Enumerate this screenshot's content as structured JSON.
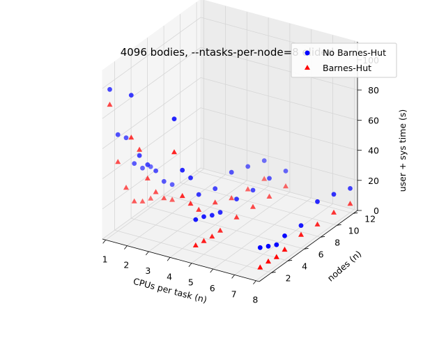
{
  "chart_data": {
    "type": "scatter",
    "title": "4096 bodies, --ntasks-per-node=8 elided",
    "xlabel": "CPUs per task (n)",
    "ylabel": "nodes (n)",
    "zlabel": "user + sys time (s)",
    "xlim": [
      0.85,
      8.15
    ],
    "ylim": [
      0.5,
      12.5
    ],
    "zlim": [
      0,
      112
    ],
    "x_ticks": [
      "1",
      "2",
      "3",
      "4",
      "5",
      "6",
      "7",
      "8"
    ],
    "y_ticks": [
      "2",
      "4",
      "6",
      "8",
      "10",
      "12"
    ],
    "z_ticks": [
      "0",
      "20",
      "40",
      "60",
      "80",
      "100"
    ],
    "grid": true,
    "legend_position": "top-right",
    "colors": {
      "no_barnes_hut": "#0000ff",
      "barnes_hut": "#ff0000"
    },
    "series": [
      {
        "name": "No Barnes-Hut",
        "marker": "circle",
        "points": [
          [
            1,
            1,
            98
          ],
          [
            1,
            2,
            64
          ],
          [
            1,
            3,
            58
          ],
          [
            1,
            4,
            37
          ],
          [
            1,
            5,
            30
          ],
          [
            1,
            6,
            27
          ],
          [
            2,
            1,
            98
          ],
          [
            2,
            2,
            54
          ],
          [
            2,
            3,
            44
          ],
          [
            2,
            4,
            36
          ],
          [
            2,
            5,
            25
          ],
          [
            2,
            6,
            19
          ],
          [
            4,
            1,
            90
          ],
          [
            4,
            2,
            52
          ],
          [
            4,
            3,
            43
          ],
          [
            4,
            4,
            28
          ],
          [
            4,
            6,
            24
          ],
          [
            4,
            8,
            27
          ],
          [
            4,
            10,
            23
          ],
          [
            4,
            12,
            19
          ],
          [
            5,
            1,
            27
          ],
          [
            5,
            2,
            25
          ],
          [
            5,
            3,
            22
          ],
          [
            5,
            4,
            20
          ],
          [
            5,
            6,
            21
          ],
          [
            5,
            8,
            19
          ],
          [
            5,
            10,
            19
          ],
          [
            5,
            12,
            16
          ],
          [
            8,
            1,
            20
          ],
          [
            8,
            2,
            17
          ],
          [
            8,
            3,
            14
          ],
          [
            8,
            4,
            16
          ],
          [
            8,
            6,
            15
          ],
          [
            8,
            8,
            23
          ],
          [
            8,
            10,
            20
          ],
          [
            8,
            12,
            16
          ]
        ]
      },
      {
        "name": "Barnes-Hut",
        "marker": "triangle",
        "points": [
          [
            1,
            1,
            88
          ],
          [
            1,
            2,
            46
          ],
          [
            1,
            3,
            25
          ],
          [
            1,
            4,
            12
          ],
          [
            1,
            5,
            8
          ],
          [
            1,
            6,
            6
          ],
          [
            2,
            1,
            70
          ],
          [
            2,
            2,
            58
          ],
          [
            2,
            3,
            35
          ],
          [
            2,
            4,
            22
          ],
          [
            2,
            5,
            14
          ],
          [
            2,
            6,
            9
          ],
          [
            4,
            1,
            68
          ],
          [
            4,
            2,
            35
          ],
          [
            4,
            3,
            26
          ],
          [
            4,
            4,
            18
          ],
          [
            4,
            6,
            15
          ],
          [
            4,
            8,
            10
          ],
          [
            4,
            10,
            8
          ],
          [
            4,
            12,
            7
          ],
          [
            5,
            1,
            10
          ],
          [
            5,
            2,
            9
          ],
          [
            5,
            3,
            8
          ],
          [
            5,
            4,
            8
          ],
          [
            5,
            6,
            9
          ],
          [
            5,
            8,
            8
          ],
          [
            5,
            10,
            7
          ],
          [
            5,
            12,
            6
          ],
          [
            8,
            1,
            7
          ],
          [
            8,
            2,
            7
          ],
          [
            8,
            3,
            6
          ],
          [
            8,
            4,
            7
          ],
          [
            8,
            6,
            9
          ],
          [
            8,
            8,
            8
          ],
          [
            8,
            10,
            8
          ],
          [
            8,
            12,
            6
          ]
        ]
      }
    ]
  }
}
